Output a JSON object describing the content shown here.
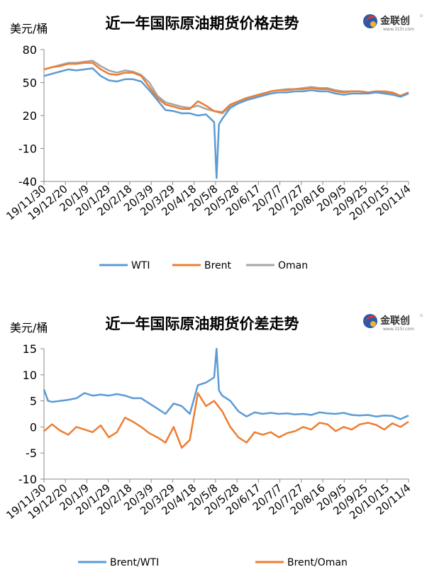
{
  "logo": {
    "brand": "金联创",
    "site": "www.315i.com",
    "colors": [
      "#e8332a",
      "#2b5ba8",
      "#f2b233"
    ]
  },
  "chart_data": [
    {
      "type": "line",
      "title": "近一年国际原油期货价格走势",
      "ylabel": "美元/桶",
      "ylim": [
        -40,
        80
      ],
      "yticks": [
        80,
        50,
        20,
        -10,
        -40
      ],
      "grid": false,
      "legend": "bottom",
      "categories": [
        "19/11/30",
        "19/12/20",
        "20/1/9",
        "20/1/29",
        "20/2/18",
        "20/3/9",
        "20/3/29",
        "20/4/18",
        "20/5/8",
        "20/5/28",
        "20/6/17",
        "20/7/7",
        "20/7/27",
        "20/8/16",
        "20/9/5",
        "20/9/25",
        "20/10/15",
        "20/11/4"
      ],
      "series": [
        {
          "name": "WTI",
          "color": "#5b9bd5",
          "values": [
            [
              0,
              56
            ],
            [
              1,
              58
            ],
            [
              2,
              60
            ],
            [
              3,
              62
            ],
            [
              4,
              61
            ],
            [
              5,
              62
            ],
            [
              6,
              63
            ],
            [
              7,
              56
            ],
            [
              8,
              52
            ],
            [
              9,
              51
            ],
            [
              10,
              53
            ],
            [
              11,
              53
            ],
            [
              12,
              51
            ],
            [
              13,
              43
            ],
            [
              14,
              34
            ],
            [
              15,
              25
            ],
            [
              16,
              24
            ],
            [
              17,
              22
            ],
            [
              18,
              22
            ],
            [
              19,
              20
            ],
            [
              20,
              21
            ],
            [
              21,
              14
            ],
            [
              21.3,
              -37
            ],
            [
              21.6,
              12
            ],
            [
              22,
              17
            ],
            [
              23,
              27
            ],
            [
              24,
              31
            ],
            [
              25,
              34
            ],
            [
              26,
              36
            ],
            [
              27,
              38
            ],
            [
              28,
              40
            ],
            [
              29,
              41
            ],
            [
              30,
              41
            ],
            [
              31,
              42
            ],
            [
              32,
              42
            ],
            [
              33,
              43
            ],
            [
              34,
              42
            ],
            [
              35,
              42
            ],
            [
              36,
              40
            ],
            [
              37,
              39
            ],
            [
              38,
              40
            ],
            [
              39,
              40
            ],
            [
              40,
              40
            ],
            [
              41,
              41
            ],
            [
              42,
              40
            ],
            [
              43,
              39
            ],
            [
              44,
              37
            ],
            [
              45,
              40
            ]
          ]
        },
        {
          "name": "Brent",
          "color": "#ed7d31",
          "values": [
            [
              0,
              62
            ],
            [
              1,
              64
            ],
            [
              2,
              65
            ],
            [
              3,
              67
            ],
            [
              4,
              67
            ],
            [
              5,
              68
            ],
            [
              6,
              68
            ],
            [
              7,
              62
            ],
            [
              8,
              58
            ],
            [
              9,
              57
            ],
            [
              10,
              59
            ],
            [
              11,
              59
            ],
            [
              12,
              56
            ],
            [
              13,
              46
            ],
            [
              14,
              36
            ],
            [
              15,
              30
            ],
            [
              16,
              28
            ],
            [
              17,
              26
            ],
            [
              18,
              26
            ],
            [
              19,
              33
            ],
            [
              20,
              29
            ],
            [
              21,
              24
            ],
            [
              22,
              23
            ],
            [
              23,
              30
            ],
            [
              24,
              33
            ],
            [
              25,
              36
            ],
            [
              26,
              38
            ],
            [
              27,
              40
            ],
            [
              28,
              42
            ],
            [
              29,
              43
            ],
            [
              30,
              43
            ],
            [
              31,
              44
            ],
            [
              32,
              44
            ],
            [
              33,
              45
            ],
            [
              34,
              44
            ],
            [
              35,
              44
            ],
            [
              36,
              42
            ],
            [
              37,
              41
            ],
            [
              38,
              42
            ],
            [
              39,
              42
            ],
            [
              40,
              41
            ],
            [
              41,
              42
            ],
            [
              42,
              42
            ],
            [
              43,
              41
            ],
            [
              44,
              38
            ],
            [
              45,
              41
            ]
          ]
        },
        {
          "name": "Oman",
          "color": "#a5a5a5",
          "values": [
            [
              0,
              62
            ],
            [
              1,
              64
            ],
            [
              2,
              66
            ],
            [
              3,
              68
            ],
            [
              4,
              68
            ],
            [
              5,
              69
            ],
            [
              6,
              70
            ],
            [
              7,
              65
            ],
            [
              8,
              61
            ],
            [
              9,
              59
            ],
            [
              10,
              61
            ],
            [
              11,
              60
            ],
            [
              12,
              57
            ],
            [
              13,
              50
            ],
            [
              14,
              38
            ],
            [
              15,
              32
            ],
            [
              16,
              30
            ],
            [
              17,
              28
            ],
            [
              18,
              27
            ],
            [
              19,
              29
            ],
            [
              20,
              26
            ],
            [
              21,
              24
            ],
            [
              22,
              22
            ],
            [
              23,
              28
            ],
            [
              24,
              32
            ],
            [
              25,
              35
            ],
            [
              26,
              37
            ],
            [
              27,
              39
            ],
            [
              28,
              42
            ],
            [
              29,
              43
            ],
            [
              30,
              44
            ],
            [
              31,
              44
            ],
            [
              32,
              45
            ],
            [
              33,
              46
            ],
            [
              34,
              45
            ],
            [
              35,
              45
            ],
            [
              36,
              43
            ],
            [
              37,
              42
            ],
            [
              38,
              42
            ],
            [
              39,
              42
            ],
            [
              40,
              41
            ],
            [
              41,
              42
            ],
            [
              42,
              41
            ],
            [
              43,
              40
            ],
            [
              44,
              38
            ],
            [
              45,
              41
            ]
          ]
        }
      ]
    },
    {
      "type": "line",
      "title": "近一年国际原油期货价差走势",
      "ylabel": "美元/桶",
      "ylim": [
        -10,
        15
      ],
      "yticks": [
        15,
        10,
        5,
        0,
        -5,
        -10
      ],
      "grid": false,
      "legend": "bottom",
      "categories": [
        "19/11/30",
        "19/12/20",
        "20/1/9",
        "20/1/29",
        "20/2/18",
        "20/3/9",
        "20/3/29",
        "20/4/18",
        "20/5/8",
        "20/5/28",
        "20/6/17",
        "20/7/7",
        "20/7/27",
        "20/8/16",
        "20/9/5",
        "20/9/25",
        "20/10/15",
        "20/11/4"
      ],
      "series": [
        {
          "name": "Brent/WTI",
          "color": "#5b9bd5",
          "values": [
            [
              0,
              7.2
            ],
            [
              0.5,
              5
            ],
            [
              1,
              4.8
            ],
            [
              2,
              5
            ],
            [
              3,
              5.2
            ],
            [
              4,
              5.5
            ],
            [
              5,
              6.5
            ],
            [
              6,
              6
            ],
            [
              7,
              6.2
            ],
            [
              8,
              6
            ],
            [
              9,
              6.3
            ],
            [
              10,
              6
            ],
            [
              11,
              5.5
            ],
            [
              12,
              5.5
            ],
            [
              13,
              4.5
            ],
            [
              14,
              3.5
            ],
            [
              15,
              2.5
            ],
            [
              16,
              4.5
            ],
            [
              17,
              4
            ],
            [
              18,
              2.5
            ],
            [
              19,
              8
            ],
            [
              20,
              8.5
            ],
            [
              21,
              9.5
            ],
            [
              21.3,
              15
            ],
            [
              21.6,
              7
            ],
            [
              22,
              6
            ],
            [
              23,
              5
            ],
            [
              24,
              3
            ],
            [
              25,
              2
            ],
            [
              26,
              2.8
            ],
            [
              27,
              2.5
            ],
            [
              28,
              2.7
            ],
            [
              29,
              2.5
            ],
            [
              30,
              2.6
            ],
            [
              31,
              2.4
            ],
            [
              32,
              2.5
            ],
            [
              33,
              2.3
            ],
            [
              34,
              2.8
            ],
            [
              35,
              2.6
            ],
            [
              36,
              2.5
            ],
            [
              37,
              2.7
            ],
            [
              38,
              2.3
            ],
            [
              39,
              2.2
            ],
            [
              40,
              2.3
            ],
            [
              41,
              2
            ],
            [
              42,
              2.2
            ],
            [
              43,
              2.1
            ],
            [
              44,
              1.5
            ],
            [
              45,
              2.2
            ]
          ]
        },
        {
          "name": "Brent/Oman",
          "color": "#ed7d31",
          "values": [
            [
              0,
              -0.8
            ],
            [
              1,
              0.5
            ],
            [
              2,
              -0.7
            ],
            [
              3,
              -1.5
            ],
            [
              4,
              0
            ],
            [
              5,
              -0.5
            ],
            [
              6,
              -1
            ],
            [
              7,
              0.3
            ],
            [
              8,
              -2
            ],
            [
              9,
              -1
            ],
            [
              10,
              1.8
            ],
            [
              11,
              1
            ],
            [
              12,
              0
            ],
            [
              13,
              -1.2
            ],
            [
              14,
              -2
            ],
            [
              15,
              -3
            ],
            [
              16,
              0
            ],
            [
              17,
              -4
            ],
            [
              18,
              -2.5
            ],
            [
              19,
              6.5
            ],
            [
              20,
              4
            ],
            [
              21,
              5
            ],
            [
              22,
              3
            ],
            [
              23,
              0
            ],
            [
              24,
              -2
            ],
            [
              25,
              -3
            ],
            [
              26,
              -1
            ],
            [
              27,
              -1.5
            ],
            [
              28,
              -1
            ],
            [
              29,
              -2
            ],
            [
              30,
              -1.2
            ],
            [
              31,
              -0.8
            ],
            [
              32,
              0
            ],
            [
              33,
              -0.5
            ],
            [
              34,
              0.8
            ],
            [
              35,
              0.5
            ],
            [
              36,
              -0.8
            ],
            [
              37,
              0
            ],
            [
              38,
              -0.5
            ],
            [
              39,
              0.5
            ],
            [
              40,
              0.8
            ],
            [
              41,
              0.4
            ],
            [
              42,
              -0.5
            ],
            [
              43,
              0.7
            ],
            [
              44,
              0
            ],
            [
              45,
              1
            ]
          ]
        }
      ]
    }
  ]
}
